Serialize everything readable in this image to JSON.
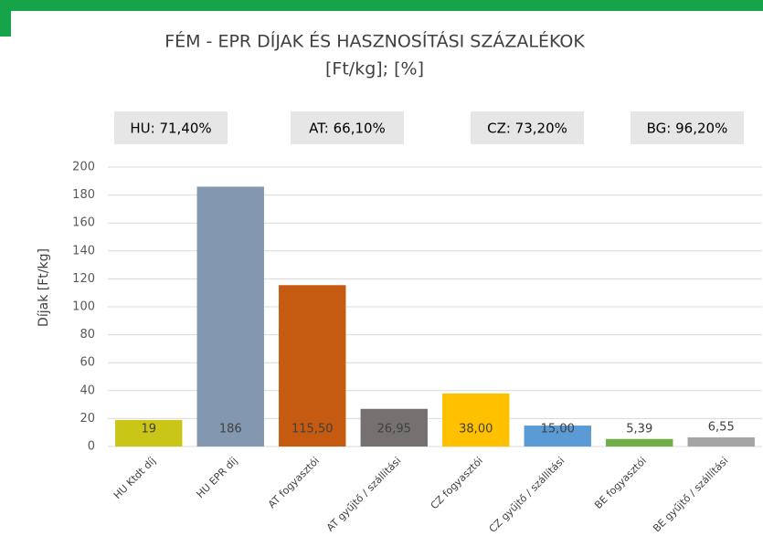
{
  "chart_data": {
    "type": "bar",
    "title": "FÉM - EPR DÍJAK ÉS HASZNOSÍTÁSI SZÁZALÉKOK",
    "subtitle": "[Ft/kg]; [%]",
    "y_label": "Díjak [Ft/kg]",
    "annotations": [
      "HU: 71,40%",
      "AT: 66,10%",
      "CZ: 73,20%",
      "BG: 96,20%"
    ],
    "categories": [
      "HU Ktdt díj",
      "HU EPR díj",
      "AT fogyasztói",
      "AT gyűjtő / szállítási",
      "CZ fogyasztói",
      "CZ gyűjtő / szállítási",
      "BE fogyasztói",
      "BE gyűjtő / szállítási"
    ],
    "values": [
      19,
      186,
      115.5,
      26.95,
      38,
      15,
      5.39,
      6.55
    ],
    "value_labels": [
      "19",
      "186",
      "115,50",
      "26,95",
      "38,00",
      "15,00",
      "5,39",
      "6,55"
    ],
    "colors": [
      "#c9c617",
      "#8497b0",
      "#c55a11",
      "#767171",
      "#ffc000",
      "#5b9bd5",
      "#70ad47",
      "#a5a5a5"
    ],
    "ylim": [
      0,
      200
    ],
    "yticks": [
      0,
      20,
      40,
      60,
      80,
      100,
      120,
      140,
      160,
      180,
      200
    ],
    "grid": true
  }
}
